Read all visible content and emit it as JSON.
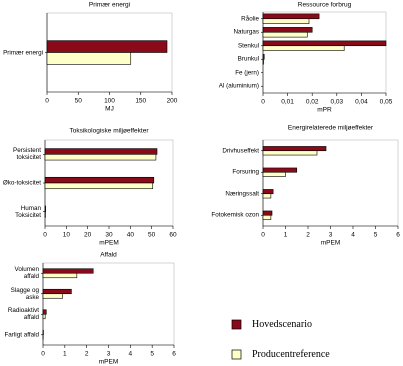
{
  "chart_data": [
    {
      "type": "bar",
      "orientation": "horizontal",
      "title": "Primær energi",
      "x_label": "MJ",
      "categories": [
        "Primær energi"
      ],
      "series": [
        {
          "color": "#8b0a1a",
          "values": [
            192
          ]
        },
        {
          "color": "#ffffc8",
          "values": [
            134
          ]
        }
      ],
      "xlim": [
        0,
        200
      ],
      "xticks": [
        0,
        50,
        100,
        150,
        200
      ]
    },
    {
      "type": "bar",
      "orientation": "horizontal",
      "title": "Ressource forbrug",
      "x_label": "mPR",
      "categories": [
        "Råolie",
        "Naturgas",
        "Stenkul",
        "Brunkul",
        "Fe (jern)",
        "Al (aluminium)"
      ],
      "series": [
        {
          "color": "#8b0a1a",
          "values": [
            0.0228,
            0.02,
            0.05,
            0.0005,
            0,
            0
          ]
        },
        {
          "color": "#ffffc8",
          "values": [
            0.0187,
            0.018,
            0.033,
            0.0003,
            0,
            0
          ]
        }
      ],
      "xlim": [
        0,
        0.05
      ],
      "xticks": [
        0,
        {
          "value": 0.01,
          "label": "0,01"
        },
        {
          "value": 0.02,
          "label": "0,02"
        },
        {
          "value": 0.03,
          "label": "0,03"
        },
        {
          "value": 0.04,
          "label": "0,04"
        },
        {
          "value": 0.05,
          "label": "0,05"
        }
      ]
    },
    {
      "type": "bar",
      "orientation": "horizontal",
      "title": "Toksikologiske miljøeffekter",
      "x_label": "mPEM",
      "categories": [
        "Persistent toksicitet",
        "Øko-toksicitet",
        "Human Toksicitet"
      ],
      "series": [
        {
          "color": "#8b0a1a",
          "values": [
            52.5,
            51,
            0.3
          ]
        },
        {
          "color": "#ffffc8",
          "values": [
            52,
            50.5,
            0.2
          ]
        }
      ],
      "xlim": [
        0,
        60
      ],
      "xticks": [
        0,
        10,
        20,
        30,
        40,
        50,
        60
      ]
    },
    {
      "type": "bar",
      "orientation": "horizontal",
      "title": "Energirelaterede miljøeffekter",
      "x_label": "mPEM",
      "categories": [
        "Drivhuseffekt",
        "Forsuring",
        "Næringssalt",
        "Fotokemisk ozon"
      ],
      "series": [
        {
          "color": "#8b0a1a",
          "values": [
            2.8,
            1.5,
            0.45,
            0.4
          ]
        },
        {
          "color": "#ffffc8",
          "values": [
            2.4,
            1.0,
            0.35,
            0.35
          ]
        }
      ],
      "xlim": [
        0,
        6
      ],
      "xticks": [
        0,
        1,
        2,
        3,
        4,
        5,
        6
      ]
    },
    {
      "type": "bar",
      "orientation": "horizontal",
      "title": "Affald",
      "x_label": "mPEM",
      "categories": [
        "Volumen affald",
        "Slagge og aske",
        "Radioaktivt affald",
        "Farligt affald"
      ],
      "series": [
        {
          "color": "#8b0a1a",
          "values": [
            2.3,
            1.3,
            0.15,
            0.02
          ]
        },
        {
          "color": "#ffffc8",
          "values": [
            1.55,
            0.9,
            0.1,
            0.01
          ]
        }
      ],
      "xlim": [
        0,
        6
      ],
      "xticks": [
        0,
        1,
        2,
        3,
        4,
        5,
        6
      ]
    }
  ],
  "legend": [
    {
      "name": "Hovedscenario",
      "color": "#8b0a1a"
    },
    {
      "name": "Producentreference",
      "color": "#ffffc8"
    }
  ]
}
